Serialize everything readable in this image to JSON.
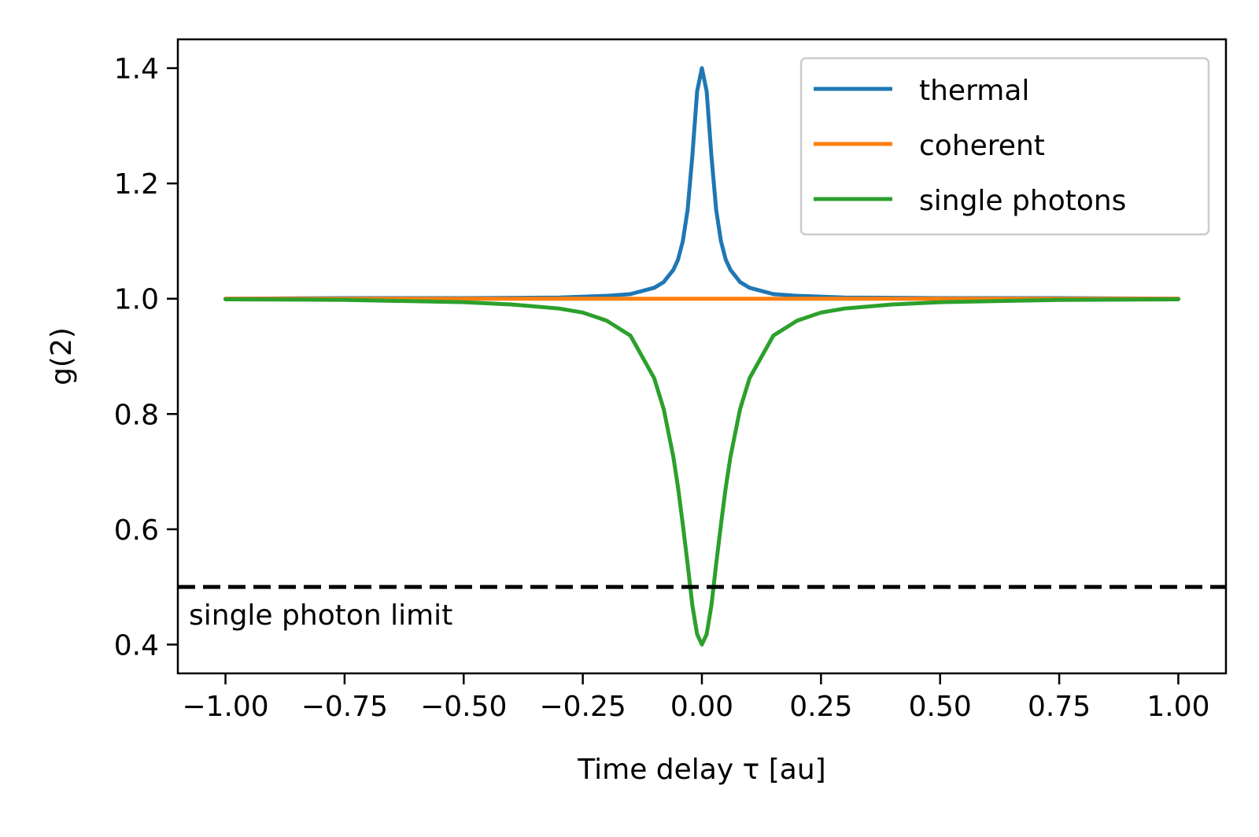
{
  "chart_data": {
    "type": "line",
    "xlabel": "Time delay τ [au]",
    "ylabel": "g(2)",
    "xlim": [
      -1.1,
      1.1
    ],
    "ylim": [
      0.35,
      1.45
    ],
    "x_ticks": [
      -1.0,
      -0.75,
      -0.5,
      -0.25,
      0.0,
      0.25,
      0.5,
      0.75,
      1.0
    ],
    "x_tick_labels": [
      "−1.00",
      "−0.75",
      "−0.50",
      "−0.25",
      "0.00",
      "0.25",
      "0.50",
      "0.75",
      "1.00"
    ],
    "y_ticks": [
      0.4,
      0.6,
      0.8,
      1.0,
      1.2,
      1.4
    ],
    "y_tick_labels": [
      "0.4",
      "0.6",
      "0.8",
      "1.0",
      "1.2",
      "1.4"
    ],
    "grid": false,
    "legend_position": "top-right",
    "series": [
      {
        "name": "thermal",
        "color": "#1f77b4",
        "x": [
          -1.0,
          -0.75,
          -0.5,
          -0.3,
          -0.2,
          -0.15,
          -0.1,
          -0.08,
          -0.06,
          -0.05,
          -0.04,
          -0.03,
          -0.02,
          -0.01,
          0.0,
          0.01,
          0.02,
          0.03,
          0.04,
          0.05,
          0.06,
          0.08,
          0.1,
          0.15,
          0.2,
          0.3,
          0.5,
          0.75,
          1.0
        ],
        "y": [
          1.0,
          1.001,
          1.001,
          1.002,
          1.005,
          1.008,
          1.019,
          1.029,
          1.05,
          1.068,
          1.1,
          1.154,
          1.248,
          1.36,
          1.4,
          1.36,
          1.248,
          1.154,
          1.1,
          1.068,
          1.05,
          1.029,
          1.019,
          1.008,
          1.005,
          1.002,
          1.001,
          1.001,
          1.0
        ]
      },
      {
        "name": "coherent",
        "color": "#ff7f0e",
        "x": [
          -1.0,
          1.0
        ],
        "y": [
          1.0,
          1.0
        ]
      },
      {
        "name": "single photons",
        "color": "#2ca02c",
        "x": [
          -1.0,
          -0.75,
          -0.5,
          -0.4,
          -0.3,
          -0.25,
          -0.2,
          -0.15,
          -0.1,
          -0.08,
          -0.06,
          -0.05,
          -0.04,
          -0.03,
          -0.02,
          -0.01,
          0.0,
          0.01,
          0.02,
          0.03,
          0.04,
          0.05,
          0.06,
          0.08,
          0.1,
          0.15,
          0.2,
          0.25,
          0.3,
          0.4,
          0.5,
          0.75,
          1.0
        ],
        "y": [
          0.999,
          0.998,
          0.994,
          0.99,
          0.983,
          0.976,
          0.962,
          0.936,
          0.862,
          0.808,
          0.726,
          0.672,
          0.608,
          0.54,
          0.468,
          0.418,
          0.4,
          0.418,
          0.468,
          0.54,
          0.608,
          0.672,
          0.726,
          0.808,
          0.862,
          0.936,
          0.962,
          0.976,
          0.983,
          0.99,
          0.994,
          0.998,
          0.999
        ]
      }
    ],
    "hlines": [
      {
        "y": 0.5,
        "color": "#000000",
        "style": "dashed",
        "label": "single photon limit"
      }
    ]
  }
}
